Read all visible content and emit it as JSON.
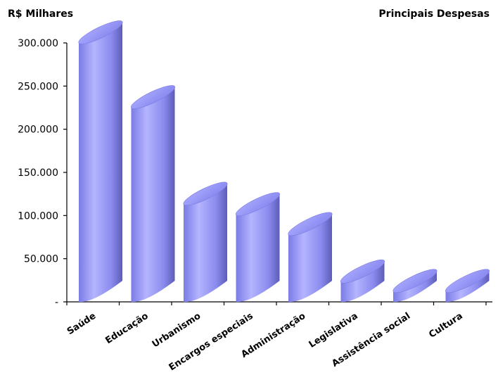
{
  "chart_data": {
    "type": "bar",
    "title": "Principais Despesas",
    "ylabel": "R$ Milhares",
    "xlabel": "",
    "categories": [
      "Saúde",
      "Educação",
      "Urbanismo",
      "Encargos especiais",
      "Administração",
      "Legislativa",
      "Assistência social",
      "Cultura"
    ],
    "values": [
      300000,
      225000,
      113000,
      101000,
      78000,
      23000,
      12000,
      12000
    ],
    "ylim": [
      0,
      300000
    ],
    "yticks": [
      0,
      50000,
      100000,
      150000,
      200000,
      250000,
      300000
    ],
    "ytick_labels": [
      "-",
      "50.000",
      "100.000",
      "150.000",
      "200.000",
      "250.000",
      "300.000"
    ],
    "grid": false,
    "legend": "none",
    "colors": {
      "bar_light": "#b5b5ff",
      "bar_mid": "#8c8cf0",
      "bar_dark": "#5a5ab4",
      "top": "#9a9af6"
    }
  }
}
